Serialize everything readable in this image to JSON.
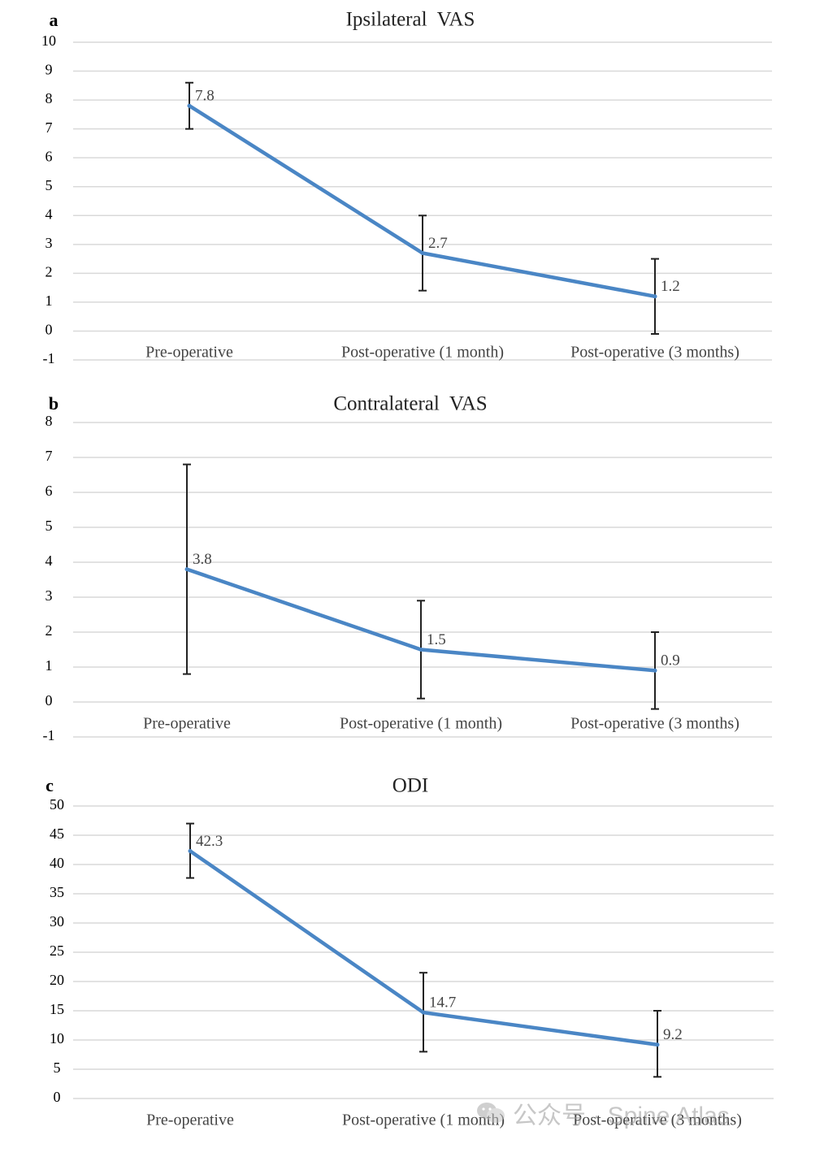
{
  "colors": {
    "line": "#4a86c5",
    "grid": "#d9d9d9",
    "text": "#444444",
    "error_bar": "#222222"
  },
  "watermark": {
    "text": "公众号 · Spine Atlas",
    "icon": "wechat-icon"
  },
  "chart_data": [
    {
      "type": "line",
      "panel_label": "a",
      "title": "Ipsilateral  VAS",
      "categories": [
        "Pre-operative",
        "Post-operative (1 month)",
        "Post-operative (3 months)"
      ],
      "values": [
        7.8,
        2.7,
        1.2
      ],
      "error_low": [
        7.0,
        1.4,
        -0.1
      ],
      "error_high": [
        8.6,
        4.0,
        2.5
      ],
      "data_labels": [
        "7.8",
        "2.7",
        "1.2"
      ],
      "yticks": [
        -1,
        0,
        1,
        2,
        3,
        4,
        5,
        6,
        7,
        8,
        9,
        10
      ],
      "ylim": [
        -1,
        10
      ],
      "grid": true
    },
    {
      "type": "line",
      "panel_label": "b",
      "title": "Contralateral  VAS",
      "categories": [
        "Pre-operative",
        "Post-operative (1 month)",
        "Post-operative (3 months)"
      ],
      "values": [
        3.8,
        1.5,
        0.9
      ],
      "error_low": [
        0.8,
        0.1,
        -0.2
      ],
      "error_high": [
        6.8,
        2.9,
        2.0
      ],
      "data_labels": [
        "3.8",
        "1.5",
        "0.9"
      ],
      "yticks": [
        -1,
        0,
        1,
        2,
        3,
        4,
        5,
        6,
        7,
        8
      ],
      "ylim": [
        -1,
        8
      ],
      "grid": true
    },
    {
      "type": "line",
      "panel_label": "c",
      "title": "ODI",
      "categories": [
        "Pre-operative",
        "Post-operative (1 month)",
        "Post-operative (3 months)"
      ],
      "values": [
        42.3,
        14.7,
        9.2
      ],
      "error_low": [
        37.7,
        8.0,
        3.7
      ],
      "error_high": [
        47.0,
        21.5,
        15.0
      ],
      "data_labels": [
        "42.3",
        "14.7",
        "9.2"
      ],
      "yticks": [
        0,
        5,
        10,
        15,
        20,
        25,
        30,
        35,
        40,
        45,
        50
      ],
      "ylim": [
        0,
        50
      ],
      "grid": true
    }
  ]
}
